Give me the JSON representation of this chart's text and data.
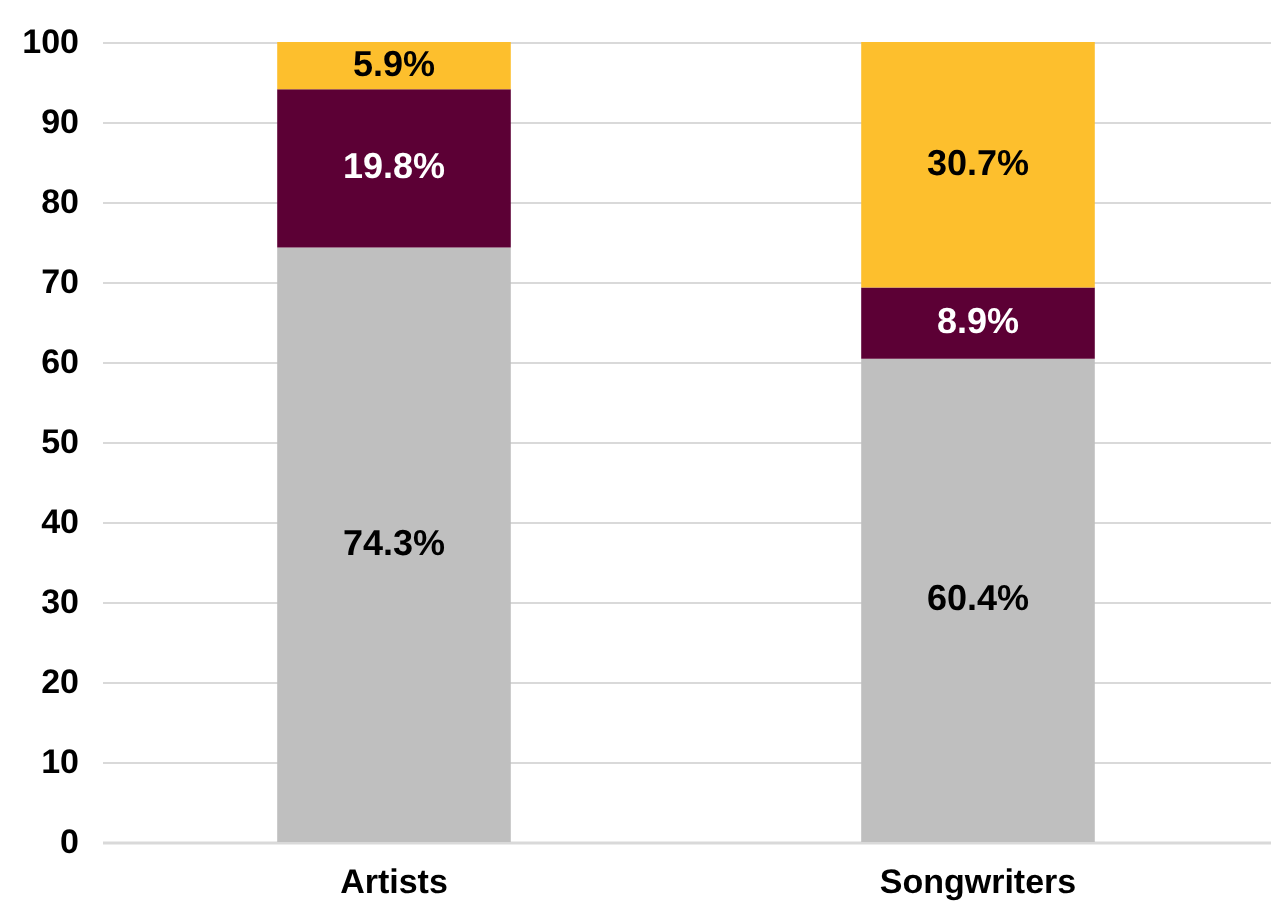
{
  "chart_data": {
    "type": "bar",
    "stacked": true,
    "categories": [
      "Artists",
      "Songwriters"
    ],
    "series": [
      {
        "color": "#bfbfbf",
        "values": [
          74.3,
          60.4
        ],
        "value_labels": [
          "74.3%",
          "60.4%"
        ]
      },
      {
        "color": "#5c0035",
        "values": [
          19.8,
          8.9
        ],
        "value_labels": [
          "19.8%",
          "8.9%"
        ]
      },
      {
        "color": "#fdbf2d",
        "values": [
          5.9,
          30.7
        ],
        "value_labels": [
          "5.9%",
          "30.7%"
        ]
      }
    ],
    "ylim": [
      0,
      100
    ],
    "yticks": [
      0,
      10,
      20,
      30,
      40,
      50,
      60,
      70,
      80,
      90,
      100
    ],
    "grid": "y",
    "legend": false
  }
}
